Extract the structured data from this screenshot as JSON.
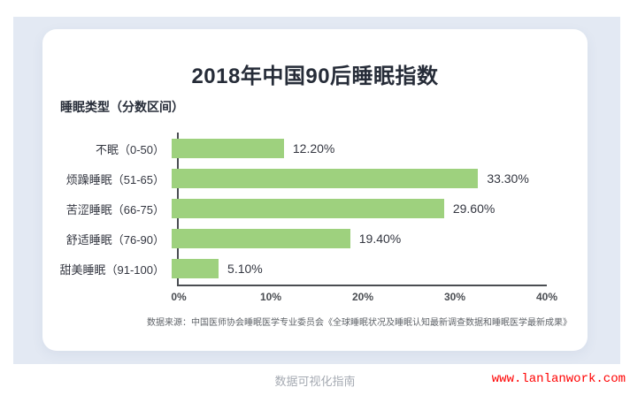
{
  "chart_data": {
    "type": "bar",
    "orientation": "horizontal",
    "title": "2018年中国90后睡眠指数",
    "y_axis_title": "睡眠类型（分数区间）",
    "categories": [
      "不眠（0-50）",
      "烦躁睡眠（51-65）",
      "苦涩睡眠（66-75）",
      "舒适睡眠（76-90）",
      "甜美睡眠（91-100）"
    ],
    "values": [
      12.2,
      33.3,
      29.6,
      19.4,
      5.1
    ],
    "value_labels": [
      "12.20%",
      "33.30%",
      "29.60%",
      "19.40%",
      "5.10%"
    ],
    "xlim": [
      0,
      40
    ],
    "x_ticks": [
      "0%",
      "10%",
      "20%",
      "30%",
      "40%"
    ],
    "grid": false,
    "legend": false,
    "bar_color": "#9ed17e",
    "source": "数据来源：中国医师协会睡眠医学专业委员会《全球睡眠状况及睡眠认知最新调查数据和睡眠医学最新成果》"
  },
  "footer": {
    "watermark": "数据可视化指南",
    "website": "www.lanlanwork.com"
  },
  "colors": {
    "background": "#e3e9f3",
    "card": "#ffffff",
    "bar": "#9ed17e",
    "title_text": "#262c38",
    "axis": "#4a4d52",
    "website_red": "#ff0000"
  }
}
